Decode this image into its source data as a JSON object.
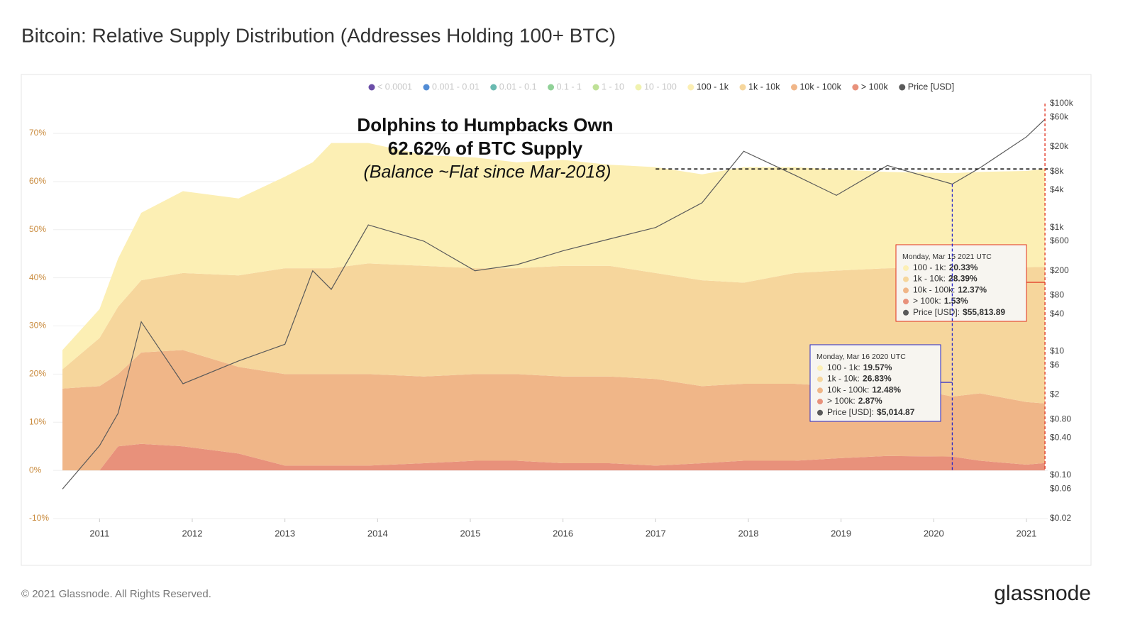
{
  "chart_data": {
    "type": "stacked_area",
    "title": "Bitcoin: Relative Supply Distribution (Addresses Holding 100+ BTC)",
    "x": [
      2010.6,
      2011.0,
      2011.2,
      2011.45,
      2011.9,
      2012.5,
      2013.0,
      2013.3,
      2013.5,
      2013.9,
      2014.5,
      2015.05,
      2015.5,
      2016.0,
      2016.5,
      2017.0,
      2017.5,
      2017.95,
      2018.5,
      2018.95,
      2019.5,
      2020.2,
      2020.5,
      2021.0,
      2021.2
    ],
    "xlim": [
      2010.5,
      2021.23
    ],
    "xticks": [
      2011,
      2012,
      2013,
      2014,
      2015,
      2016,
      2017,
      2018,
      2019,
      2020,
      2021
    ],
    "ylim": [
      -10,
      76.2
    ],
    "yticks": [
      {
        "value": -10,
        "label": "-10%"
      },
      {
        "value": 0,
        "label": "0%"
      },
      {
        "value": 10,
        "label": "10%"
      },
      {
        "value": 20,
        "label": "20%"
      },
      {
        "value": 30,
        "label": "30%"
      },
      {
        "value": 40,
        "label": "40%"
      },
      {
        "value": 50,
        "label": "50%"
      },
      {
        "value": 60,
        "label": "60%"
      },
      {
        "value": 70,
        "label": "70%"
      }
    ],
    "y2lim": [
      0.02,
      100000
    ],
    "y2_log": true,
    "y2ticks": [
      {
        "value": 100000,
        "label": "$100k"
      },
      {
        "value": 60000,
        "label": "$60k"
      },
      {
        "value": 20000,
        "label": "$20k"
      },
      {
        "value": 8000,
        "label": "$8k"
      },
      {
        "value": 4000,
        "label": "$4k"
      },
      {
        "value": 1000,
        "label": "$1k"
      },
      {
        "value": 600,
        "label": "$600"
      },
      {
        "value": 200,
        "label": "$200"
      },
      {
        "value": 80,
        "label": "$80"
      },
      {
        "value": 40,
        "label": "$40"
      },
      {
        "value": 10,
        "label": "$10"
      },
      {
        "value": 6,
        "label": "$6"
      },
      {
        "value": 2,
        "label": "$2"
      },
      {
        "value": 0.8,
        "label": "$0.80"
      },
      {
        "value": 0.4,
        "label": "$0.40"
      },
      {
        "value": 0.1,
        "label": "$0.10"
      },
      {
        "value": 0.06,
        "label": "$0.06"
      },
      {
        "value": 0.02,
        "label": "$0.02"
      }
    ],
    "grid": true,
    "legend_position": "top-right",
    "inactive_legend": [
      {
        "name": "< 0.0001",
        "color": "#5b3b9e"
      },
      {
        "name": "0.001 - 0.01",
        "color": "#3f7fd0"
      },
      {
        "name": "0.01 - 0.1",
        "color": "#5ab2a9"
      },
      {
        "name": "0.1 - 1",
        "color": "#84cc8c"
      },
      {
        "name": "1 - 10",
        "color": "#b8de8c"
      },
      {
        "name": "10 - 100",
        "color": "#eef1a6"
      }
    ],
    "series": [
      {
        "name": "> 100k",
        "color": "#e8917b",
        "values": [
          0,
          0,
          5,
          5.5,
          5,
          3.5,
          1,
          1,
          1,
          1,
          1.5,
          2,
          2,
          1.5,
          1.5,
          1,
          1.5,
          2,
          2,
          2.5,
          3,
          2.87,
          2,
          1.2,
          1.53
        ]
      },
      {
        "name": "10k - 100k",
        "color": "#f0b688",
        "values": [
          17,
          17.5,
          15,
          19,
          20,
          18,
          19,
          19,
          19,
          19,
          18,
          18,
          18,
          18,
          18,
          18,
          16,
          16,
          16,
          15,
          15,
          12.48,
          14,
          13,
          12.37
        ]
      },
      {
        "name": "1k - 10k",
        "color": "#f6d69c",
        "values": [
          4,
          10,
          14,
          15,
          16,
          19,
          22,
          22,
          22,
          23,
          23,
          22,
          22,
          23,
          23,
          22,
          22,
          21,
          23,
          24,
          24,
          26.83,
          27,
          28,
          28.39
        ]
      },
      {
        "name": "100 - 1k",
        "color": "#fcefb4",
        "values": [
          4,
          6,
          10,
          14,
          17,
          16,
          19,
          22,
          26,
          25,
          23,
          23,
          22,
          22,
          21,
          22,
          22,
          24,
          22,
          21,
          20,
          19.57,
          19,
          20,
          20.33
        ]
      },
      {
        "name": "Price [USD]",
        "color": "#5a5a5a",
        "axis": "y2",
        "values": [
          0.06,
          0.3,
          1,
          30,
          3,
          7,
          13,
          200,
          100,
          1100,
          600,
          200,
          250,
          420,
          650,
          1000,
          2500,
          17000,
          7000,
          3300,
          10000,
          5014.87,
          9200,
          29000,
          55813.89
        ]
      }
    ],
    "annotation": {
      "lines": [
        "Dolphins to Humpbacks Own",
        "62.62% of BTC Supply"
      ],
      "note": "(Balance ~Flat since Mar-2018)",
      "ref_value": 62.62,
      "ref_from": 2017.0
    },
    "tooltips": [
      {
        "x": 2021.2,
        "color": "#e0301e",
        "date": "Monday, Mar 15 2021 UTC",
        "items": [
          {
            "name": "100 - 1k:",
            "color": "#fcefb4",
            "value": 20.33,
            "label": "20.33%"
          },
          {
            "name": "1k - 10k:",
            "color": "#f6d69c",
            "value": 28.39,
            "label": "28.39%"
          },
          {
            "name": "10k - 100k:",
            "color": "#f0b688",
            "value": 12.37,
            "label": "12.37%"
          },
          {
            "name": "> 100k:",
            "color": "#e8917b",
            "value": 1.53,
            "label": "1.53%"
          },
          {
            "name": "Price [USD]:",
            "color": "#5a5a5a",
            "value": 55813.89,
            "label": "$55,813.89"
          }
        ]
      },
      {
        "x": 2020.2,
        "color": "#2626c8",
        "date": "Monday, Mar 16 2020 UTC",
        "items": [
          {
            "name": "100 - 1k:",
            "color": "#fcefb4",
            "value": 19.57,
            "label": "19.57%"
          },
          {
            "name": "1k - 10k:",
            "color": "#f6d69c",
            "value": 26.83,
            "label": "26.83%"
          },
          {
            "name": "10k - 100k:",
            "color": "#f0b688",
            "value": 12.48,
            "label": "12.48%"
          },
          {
            "name": "> 100k:",
            "color": "#e8917b",
            "value": 2.87,
            "label": "2.87%"
          },
          {
            "name": "Price [USD]:",
            "color": "#5a5a5a",
            "value": 5014.87,
            "label": "$5,014.87"
          }
        ]
      }
    ],
    "watermark": "glassnode",
    "footer": "© 2021 Glassnode. All Rights Reserved.",
    "brand": "glassnode"
  }
}
